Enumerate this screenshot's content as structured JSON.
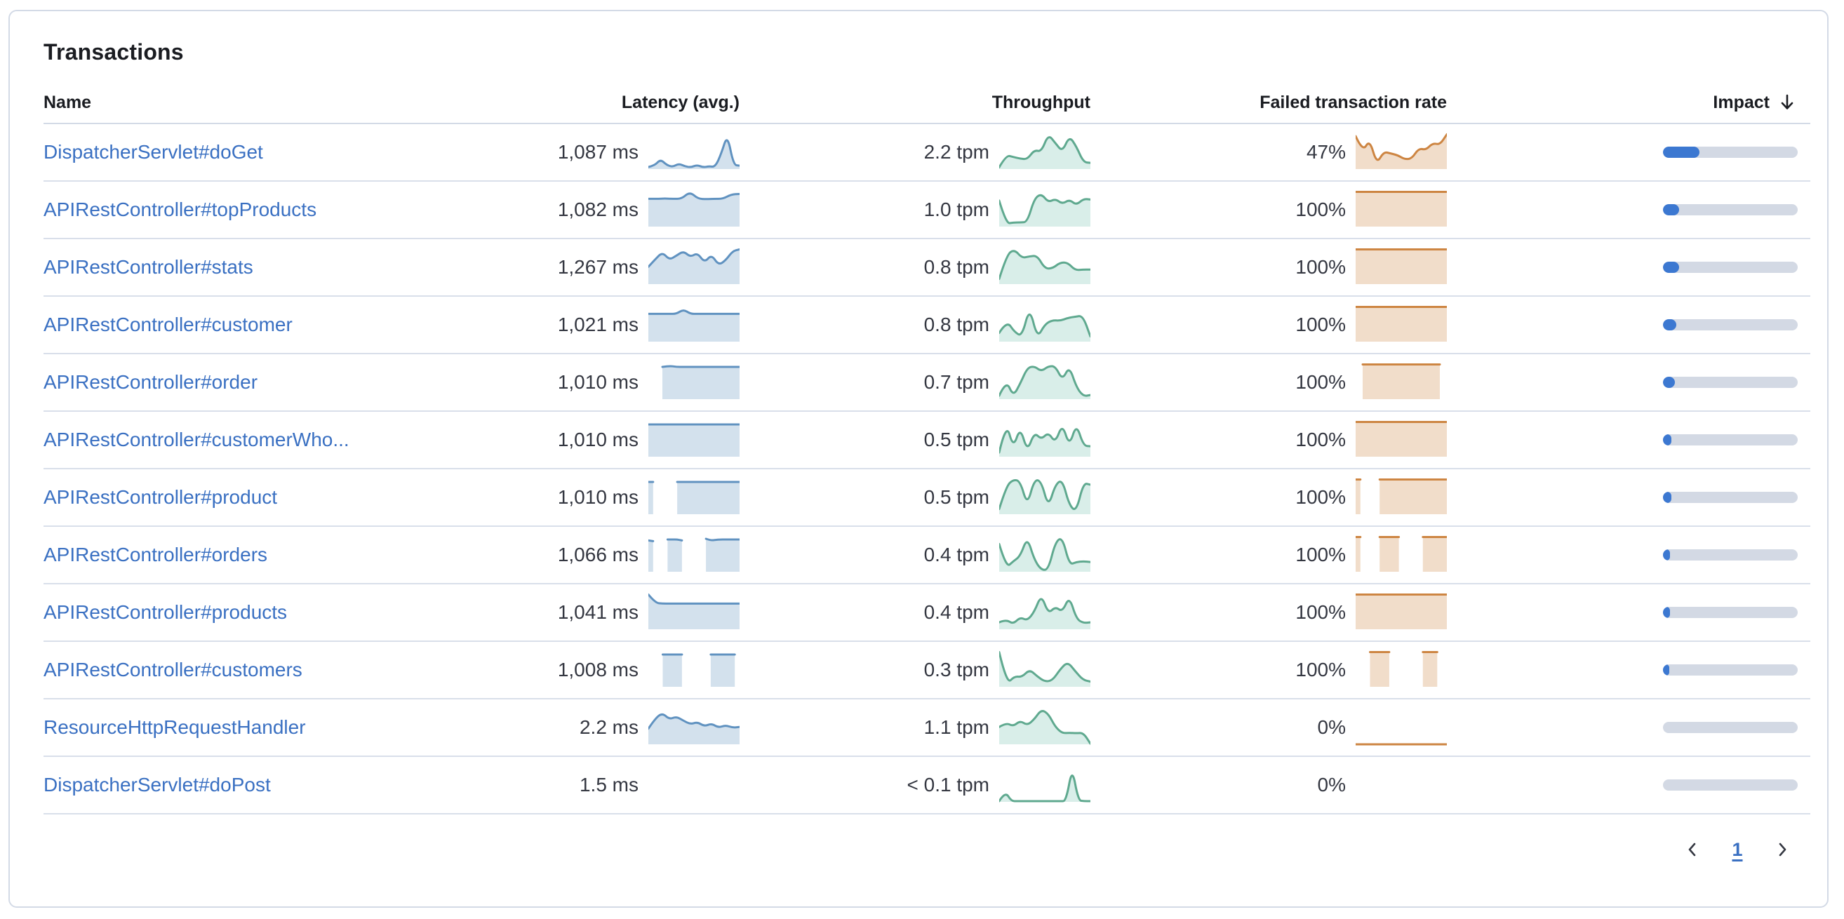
{
  "card": {
    "title": "Transactions"
  },
  "table": {
    "columns": [
      {
        "label": "Name"
      },
      {
        "label": "Latency (avg.)"
      },
      {
        "label": "Throughput"
      },
      {
        "label": "Failed transaction rate"
      },
      {
        "label": "Impact",
        "sort": "descending"
      }
    ],
    "rows": [
      {
        "name": "DispatcherServlet#doGet",
        "latency": "1,087 ms",
        "throughput": "2.2 tpm",
        "failed_rate": "47%",
        "impact_pct": 27,
        "latency_spark": [
          0.06,
          0.1,
          0.28,
          0.12,
          0.06,
          0.16,
          0.08,
          0.05,
          0.12,
          0.05,
          0.08,
          0.06,
          0.45,
          1.0,
          0.12,
          0.1
        ],
        "throughput_spark": [
          0.05,
          0.4,
          0.35,
          0.3,
          0.28,
          0.55,
          0.5,
          1.0,
          0.75,
          0.5,
          0.95,
          0.65,
          0.2,
          0.18
        ],
        "failed_spark": [
          0.95,
          0.5,
          0.85,
          0.15,
          0.5,
          0.45,
          0.4,
          0.28,
          0.3,
          0.6,
          0.55,
          0.75,
          0.7,
          1.0
        ]
      },
      {
        "name": "APIRestController#topProducts",
        "latency": "1,082 ms",
        "throughput": "1.0 tpm",
        "failed_rate": "100%",
        "impact_pct": 12,
        "latency_spark": [
          0.8,
          0.8,
          0.81,
          0.8,
          0.8,
          1.0,
          0.8,
          0.79,
          0.8,
          0.8,
          0.93,
          0.94
        ],
        "throughput_spark": [
          0.75,
          0.08,
          0.12,
          0.12,
          0.13,
          0.8,
          0.95,
          0.7,
          0.8,
          0.65,
          0.78,
          0.62,
          0.8,
          0.78
        ],
        "failed_spark": [
          1,
          1,
          1,
          1,
          1,
          1,
          1,
          1,
          1,
          1,
          1,
          1
        ]
      },
      {
        "name": "APIRestController#stats",
        "latency": "1,267 ms",
        "throughput": "0.8 tpm",
        "failed_rate": "100%",
        "impact_pct": 12,
        "latency_spark": [
          0.5,
          0.72,
          0.92,
          0.7,
          0.82,
          0.95,
          0.78,
          0.9,
          0.62,
          0.85,
          0.55,
          0.68,
          0.95,
          1.0
        ],
        "throughput_spark": [
          0.15,
          0.85,
          1.0,
          0.75,
          0.8,
          0.82,
          0.45,
          0.45,
          0.62,
          0.62,
          0.4,
          0.42,
          0.42
        ],
        "failed_spark": [
          1,
          1,
          1,
          1,
          1,
          1,
          1,
          1,
          1,
          1,
          1,
          1
        ]
      },
      {
        "name": "APIRestController#customer",
        "latency": "1,021 ms",
        "throughput": "0.8 tpm",
        "failed_rate": "100%",
        "impact_pct": 10,
        "latency_spark": [
          0.8,
          0.8,
          0.8,
          0.8,
          0.8,
          0.93,
          0.8,
          0.8,
          0.8,
          0.8,
          0.8,
          0.8,
          0.8,
          0.8
        ],
        "throughput_spark": [
          0.25,
          0.6,
          0.28,
          0.15,
          1.0,
          0.1,
          0.5,
          0.62,
          0.6,
          0.68,
          0.72,
          0.75,
          0.15
        ],
        "failed_spark": [
          1,
          1,
          1,
          1,
          1,
          1,
          1,
          1,
          1,
          1,
          1,
          1
        ]
      },
      {
        "name": "APIRestController#order",
        "latency": "1,010 ms",
        "throughput": "0.7 tpm",
        "failed_rate": "100%",
        "impact_pct": 9,
        "latency_spark": [
          null,
          null,
          0.93,
          0.96,
          0.93,
          0.93,
          0.93,
          0.93,
          0.93,
          0.93,
          0.93,
          0.93,
          0.93,
          0.93
        ],
        "throughput_spark": [
          0.1,
          0.55,
          0.08,
          0.45,
          0.9,
          0.95,
          0.8,
          0.95,
          0.95,
          0.55,
          0.95,
          0.35,
          0.08,
          0.12
        ],
        "failed_spark": [
          null,
          1,
          1,
          1,
          1,
          1,
          1,
          1,
          1,
          1,
          1,
          1,
          1,
          null
        ]
      },
      {
        "name": "APIRestController#customerWho...",
        "latency": "1,010 ms",
        "throughput": "0.5 tpm",
        "failed_rate": "100%",
        "impact_pct": 6.5,
        "latency_spark": [
          0.93,
          0.93,
          0.93,
          0.93,
          0.93,
          0.93,
          0.93,
          0.93,
          0.93,
          0.93,
          0.93,
          0.93
        ],
        "throughput_spark": [
          0.12,
          1.0,
          0.25,
          0.85,
          0.15,
          0.7,
          0.5,
          0.7,
          0.4,
          0.95,
          0.3,
          0.95,
          0.32,
          0.3
        ],
        "failed_spark": [
          1,
          1,
          1,
          1,
          1,
          1,
          1,
          1,
          1,
          1,
          1,
          1
        ]
      },
      {
        "name": "APIRestController#product",
        "latency": "1,010 ms",
        "throughput": "0.5 tpm",
        "failed_rate": "100%",
        "impact_pct": 6,
        "latency_spark": [
          0.93,
          0.93,
          null,
          null,
          null,
          null,
          0.93,
          0.93,
          0.93,
          0.93,
          0.93,
          0.93,
          0.93,
          0.93,
          0.93,
          0.93,
          0.93,
          0.93,
          0.93,
          0.93
        ],
        "throughput_spark": [
          0.15,
          0.8,
          1.0,
          0.95,
          0.25,
          1.0,
          0.95,
          0.2,
          0.85,
          1.0,
          0.25,
          0.08,
          0.9,
          0.85
        ],
        "failed_spark": [
          1,
          1,
          null,
          null,
          null,
          1,
          1,
          1,
          1,
          1,
          1,
          1,
          1,
          1,
          1,
          1,
          1,
          1,
          1,
          1
        ]
      },
      {
        "name": "APIRestController#orders",
        "latency": "1,066 ms",
        "throughput": "0.4 tpm",
        "failed_rate": "100%",
        "impact_pct": 5,
        "latency_spark": [
          0.9,
          0.88,
          null,
          null,
          0.93,
          0.93,
          0.93,
          0.9,
          null,
          null,
          null,
          null,
          0.95,
          0.9,
          0.92,
          0.93,
          0.93,
          0.93,
          0.93,
          0.93
        ],
        "throughput_spark": [
          0.8,
          0.12,
          0.3,
          0.45,
          1.0,
          0.35,
          0.05,
          0.06,
          0.85,
          1.0,
          0.2,
          0.28,
          0.3,
          0.28
        ],
        "failed_spark": [
          1,
          1,
          null,
          null,
          null,
          1,
          1,
          1,
          1,
          1,
          null,
          null,
          null,
          null,
          1,
          1,
          1,
          1,
          1,
          1
        ]
      },
      {
        "name": "APIRestController#products",
        "latency": "1,041 ms",
        "throughput": "0.4 tpm",
        "failed_rate": "100%",
        "impact_pct": 5,
        "latency_spark": [
          1.0,
          0.76,
          0.74,
          0.74,
          0.74,
          0.74,
          0.74,
          0.74,
          0.74,
          0.74,
          0.74,
          0.74,
          0.74,
          0.74
        ],
        "throughput_spark": [
          0.2,
          0.28,
          0.15,
          0.35,
          0.25,
          0.5,
          1.0,
          0.45,
          0.65,
          0.5,
          0.95,
          0.3,
          0.18,
          0.2
        ],
        "failed_spark": [
          1,
          1,
          1,
          1,
          1,
          1,
          1,
          1,
          1,
          1,
          1,
          1
        ]
      },
      {
        "name": "APIRestController#customers",
        "latency": "1,008 ms",
        "throughput": "0.3 tpm",
        "failed_rate": "100%",
        "impact_pct": 4.5,
        "latency_spark": [
          null,
          null,
          null,
          0.93,
          0.93,
          0.93,
          0.93,
          0.93,
          null,
          null,
          null,
          null,
          null,
          0.93,
          0.93,
          0.93,
          0.93,
          0.93,
          0.93,
          null
        ],
        "throughput_spark": [
          1.0,
          0.08,
          0.3,
          0.28,
          0.5,
          0.3,
          0.15,
          0.18,
          0.5,
          0.72,
          0.45,
          0.2,
          0.15
        ],
        "failed_spark": [
          null,
          null,
          null,
          1,
          1,
          1,
          1,
          1,
          null,
          null,
          null,
          null,
          null,
          null,
          1,
          1,
          1,
          1,
          null,
          null
        ]
      },
      {
        "name": "ResourceHttpRequestHandler",
        "latency": "2.2 ms",
        "throughput": "1.1 tpm",
        "failed_rate": "0%",
        "impact_pct": 0,
        "latency_spark": [
          0.45,
          0.75,
          0.9,
          0.72,
          0.8,
          0.68,
          0.58,
          0.64,
          0.52,
          0.6,
          0.48,
          0.55,
          0.48,
          0.5
        ],
        "throughput_spark": [
          0.5,
          0.62,
          0.52,
          0.68,
          0.55,
          0.72,
          1.0,
          0.88,
          0.5,
          0.32,
          0.33,
          0.32,
          0.33,
          0.02
        ],
        "failed_spark": [
          0,
          0,
          0,
          0,
          0,
          0,
          0,
          0,
          0,
          0,
          0,
          0,
          0,
          0
        ]
      },
      {
        "name": "DispatcherServlet#doPost",
        "latency": "1.5 ms",
        "throughput": "< 0.1 tpm",
        "failed_rate": "0%",
        "impact_pct": 0,
        "latency_spark": [],
        "throughput_spark": [
          0.02,
          0.3,
          0.02,
          0.02,
          0.02,
          0.02,
          0.02,
          0.02,
          0.02,
          0.02,
          0.02,
          0.02,
          1.0,
          0.04,
          0.02,
          0.02
        ],
        "failed_spark": []
      }
    ]
  },
  "pagination": {
    "page": "1"
  },
  "colors": {
    "link": "#3a70c2",
    "latency_line": "#6092c0",
    "latency_fill": "rgba(96,146,192,0.28)",
    "throughput_line": "#5fa98f",
    "throughput_fill": "rgba(84,179,153,0.22)",
    "failed_line": "#cd8542",
    "failed_fill": "rgba(205,133,66,0.28)",
    "impact_fill": "#3c78d1",
    "impact_track": "#d3d9e4",
    "divider": "#d3dae6",
    "text": "#343741",
    "heading": "#1a1c21"
  }
}
